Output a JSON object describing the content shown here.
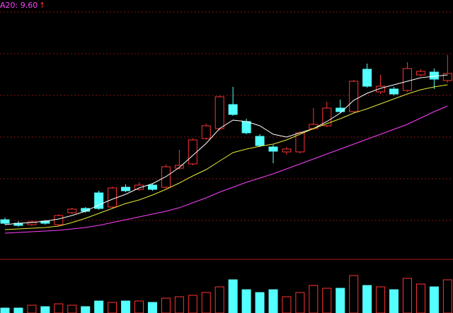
{
  "chart_data": {
    "type": "candlestick",
    "label": "A20: 9.60",
    "label_arrow": "↑",
    "open": [
      6.38,
      6.28,
      6.24,
      6.34,
      6.24,
      6.58,
      6.7,
      7.14,
      6.74,
      7.3,
      7.24,
      7.36,
      7.3,
      7.84,
      7.96,
      8.68,
      8.96,
      9.64,
      9.16,
      8.74,
      8.44,
      8.3,
      8.3,
      8.96,
      9.04,
      9.54,
      9.44,
      10.64,
      10.0,
      10.08,
      10.04,
      10.48,
      10.56,
      10.32
    ],
    "close": [
      6.28,
      6.22,
      6.32,
      6.28,
      6.5,
      6.68,
      6.62,
      6.7,
      7.28,
      7.2,
      7.36,
      7.24,
      7.88,
      7.92,
      8.64,
      9.04,
      9.86,
      9.36,
      8.84,
      8.48,
      8.32,
      8.38,
      8.84,
      9.08,
      9.54,
      9.44,
      10.3,
      10.16,
      10.16,
      9.94,
      10.66,
      10.58,
      10.36,
      10.52
    ],
    "high": [
      6.44,
      6.34,
      6.36,
      6.38,
      6.54,
      6.72,
      6.74,
      7.2,
      7.32,
      7.38,
      7.44,
      7.4,
      7.94,
      8.36,
      8.68,
      9.1,
      9.9,
      10.14,
      9.24,
      8.8,
      8.5,
      8.44,
      8.88,
      9.54,
      9.72,
      9.78,
      10.34,
      10.8,
      10.48,
      10.14,
      10.84,
      10.64,
      10.66,
      11.04
    ],
    "low": [
      6.24,
      6.18,
      6.2,
      6.24,
      6.2,
      6.54,
      6.58,
      6.66,
      6.7,
      7.16,
      7.2,
      7.2,
      7.26,
      7.8,
      7.92,
      8.64,
      8.9,
      9.32,
      8.8,
      8.44,
      7.98,
      8.22,
      8.26,
      8.92,
      9.0,
      9.4,
      9.4,
      10.12,
      9.94,
      9.9,
      10.0,
      10.44,
      10.08,
      10.26
    ],
    "up_color": "#ff3232",
    "down_color": "#54ffff",
    "ylim": [
      5.3,
      12.6
    ],
    "series": [
      {
        "color": "#ffffff",
        "values": [
          6.24,
          6.28,
          6.3,
          6.34,
          6.4,
          6.5,
          6.62,
          6.8,
          6.96,
          7.1,
          7.28,
          7.4,
          7.6,
          7.86,
          8.2,
          8.54,
          8.96,
          9.2,
          9.16,
          9.04,
          8.8,
          8.72,
          8.84,
          8.96,
          9.16,
          9.4,
          9.76,
          9.96,
          10.1,
          10.2,
          10.3,
          10.4,
          10.44,
          10.48
        ]
      },
      {
        "color": "#e8e83c",
        "values": [
          6.1,
          6.12,
          6.14,
          6.16,
          6.2,
          6.3,
          6.42,
          6.56,
          6.7,
          6.84,
          6.94,
          7.08,
          7.24,
          7.42,
          7.62,
          7.8,
          8.04,
          8.28,
          8.38,
          8.46,
          8.52,
          8.64,
          8.8,
          8.96,
          9.1,
          9.24,
          9.4,
          9.52,
          9.66,
          9.8,
          9.94,
          10.06,
          10.14,
          10.2
        ]
      },
      {
        "color": "#ff40ff",
        "values": [
          6.0,
          6.02,
          6.04,
          6.06,
          6.08,
          6.12,
          6.16,
          6.22,
          6.3,
          6.38,
          6.46,
          6.54,
          6.62,
          6.72,
          6.86,
          7.0,
          7.16,
          7.3,
          7.44,
          7.56,
          7.68,
          7.82,
          7.96,
          8.1,
          8.24,
          8.38,
          8.52,
          8.66,
          8.8,
          8.94,
          9.08,
          9.26,
          9.44,
          9.6
        ]
      }
    ],
    "volume": [
      7,
      7,
      11,
      9,
      13,
      11,
      9,
      17,
      15,
      17,
      17,
      15,
      21,
      23,
      25,
      29,
      37,
      47,
      33,
      29,
      33,
      23,
      29,
      39,
      35,
      35,
      53,
      39,
      37,
      33,
      49,
      41,
      37,
      47
    ],
    "vlim": [
      0,
      75
    ]
  }
}
